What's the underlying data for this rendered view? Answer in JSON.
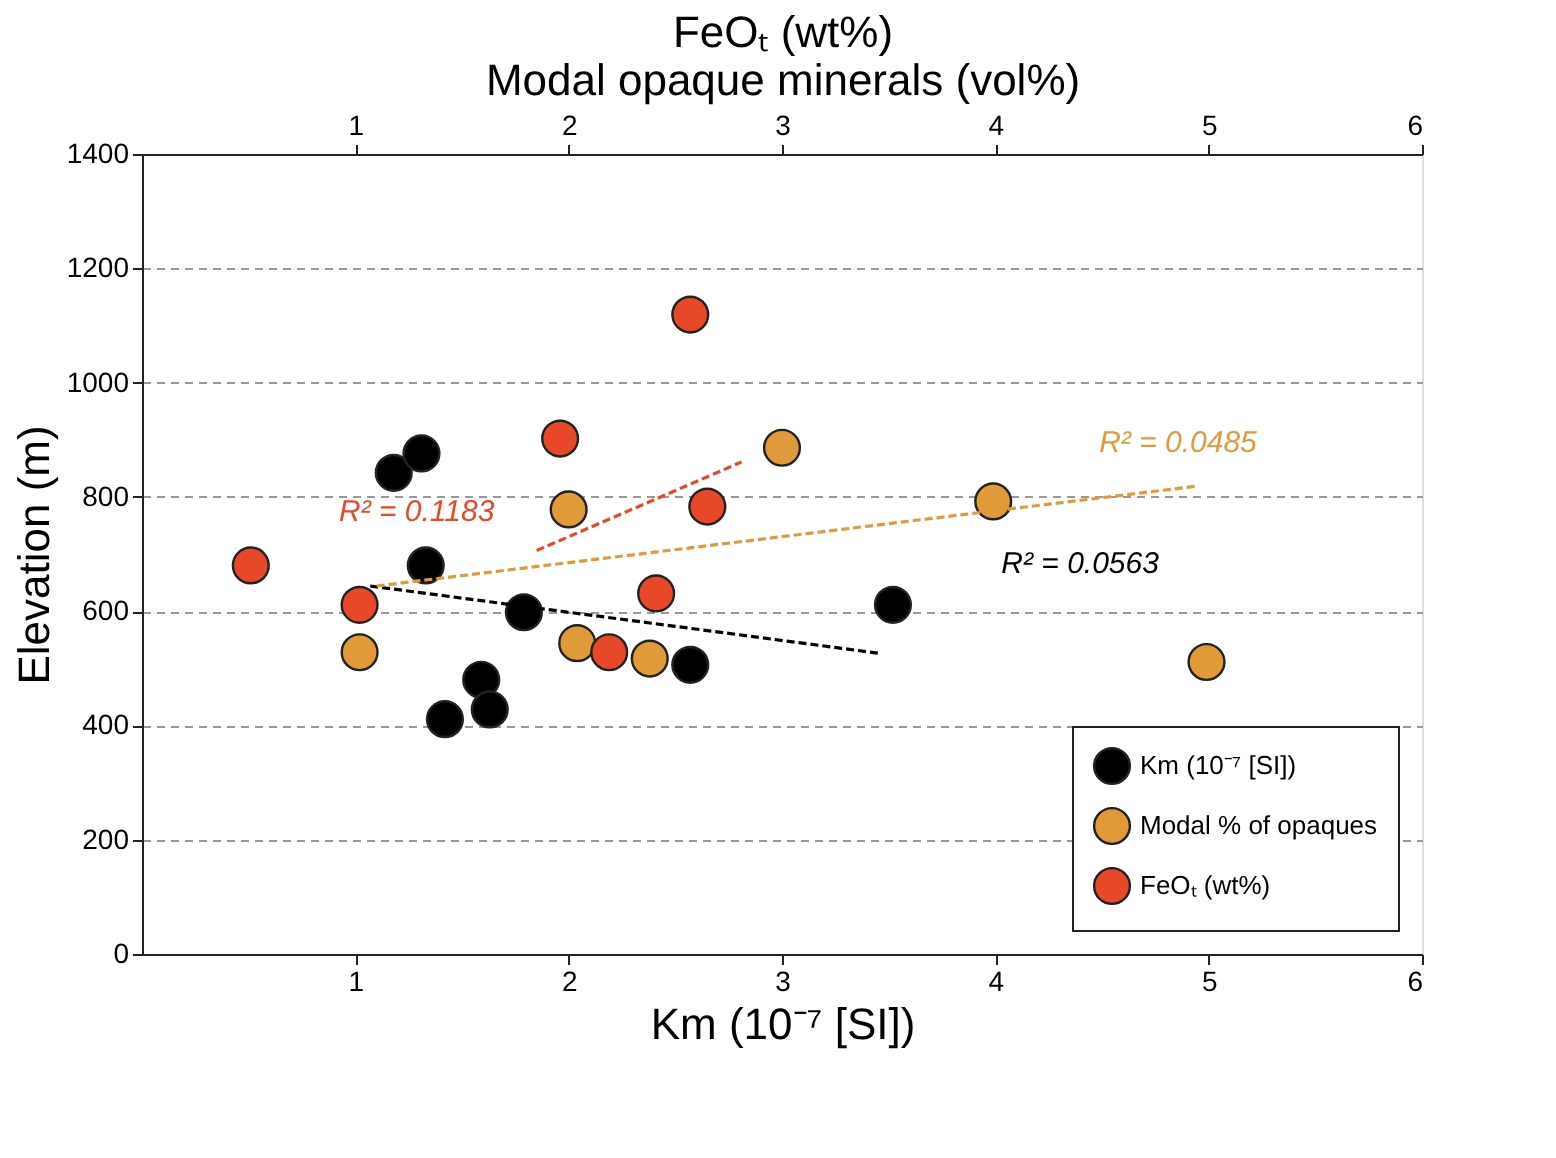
{
  "chart_data": {
    "type": "scatter",
    "xlabel": "Km (10⁻⁷ [SI])",
    "x2label": "FeOₜ (wt%)\nModal opaque minerals  (vol%)",
    "ylabel": "Elevation (m)",
    "xlim": [
      0,
      6
    ],
    "xticks": [
      1,
      2,
      3,
      4,
      5,
      6
    ],
    "x2lim": [
      0,
      6
    ],
    "x2ticks": [
      1,
      2,
      3,
      4,
      5,
      6
    ],
    "ylim": [
      0,
      1400
    ],
    "yticks": [
      0,
      200,
      400,
      600,
      800,
      1000,
      1200,
      1400
    ],
    "grid": "y",
    "legend": "bottom right",
    "series": [
      {
        "name": "Km (10⁻⁷ [SI])",
        "color": "#000000",
        "marker": "circle",
        "x": [
          1.18,
          1.31,
          1.33,
          1.79,
          1.59,
          1.63,
          1.42,
          2.57,
          3.52
        ],
        "values": [
          842,
          876,
          680,
          598,
          480,
          428,
          411,
          506,
          611
        ]
      },
      {
        "name": "Modal % of opaques",
        "color": "#e09a3a",
        "marker": "circle",
        "axis": "x2",
        "x": [
          1.02,
          2.0,
          2.04,
          2.38,
          3.0,
          3.99,
          4.99
        ],
        "values": [
          528,
          778,
          544,
          517,
          886,
          792,
          511
        ]
      },
      {
        "name": "FeOₜ (wt%)",
        "color": "#e8482a",
        "marker": "circle",
        "axis": "x2",
        "x": [
          2.57,
          1.96,
          2.65,
          0.51,
          1.02,
          2.41,
          2.19
        ],
        "values": [
          1119,
          902,
          783,
          680,
          611,
          631,
          528
        ]
      },
      {
        "type": "line",
        "color": "#000000",
        "line_style": "dashed",
        "x": [
          1.07,
          3.46
        ],
        "values": [
          644,
          526
        ]
      },
      {
        "type": "line",
        "color": "#e09a3a",
        "line_style": "dashed",
        "axis": "x2",
        "x": [
          1.1,
          4.95
        ],
        "values": [
          644,
          819
        ]
      },
      {
        "type": "line",
        "color": "#e8482a",
        "line_style": "dashed",
        "axis": "x2",
        "x": [
          1.85,
          2.81
        ],
        "values": [
          706,
          861
        ]
      }
    ],
    "annotations": [
      "R² = 0.0563",
      "R² = 0.0485",
      "R² = 0.1183"
    ]
  }
}
